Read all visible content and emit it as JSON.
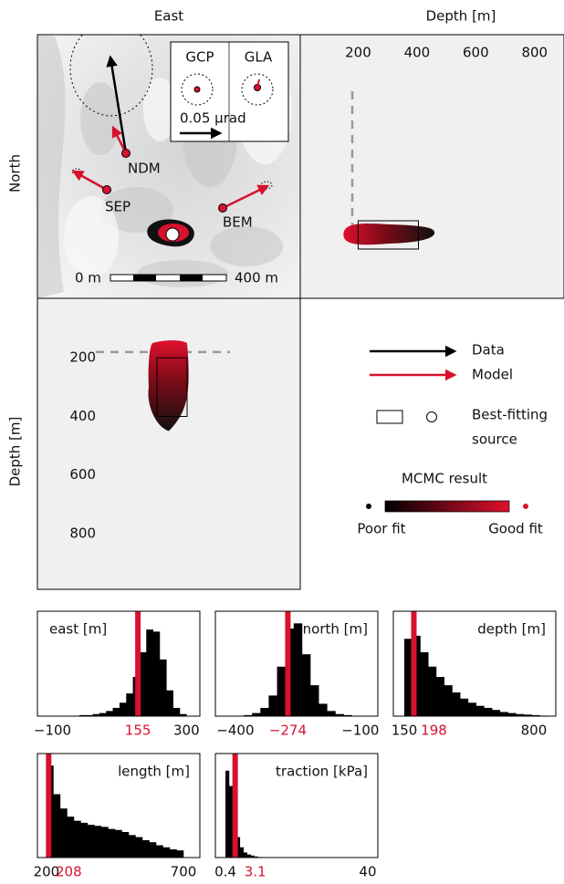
{
  "chart_data": [
    {
      "type": "map",
      "x_label": "East",
      "y_label": "North",
      "stations": [
        "NDM",
        "SEP",
        "BEM"
      ],
      "inset_stations": [
        "GCP",
        "GLA"
      ],
      "inset_scale": "0.05 μrad",
      "scale_labels": [
        "0 m",
        "400 m"
      ]
    },
    {
      "type": "scatter",
      "x_label": "Depth [m]",
      "xlim": [
        0,
        900
      ],
      "xticks": [
        200,
        400,
        600,
        800
      ],
      "dashed_line": 180,
      "cloud": [
        150,
        460
      ],
      "source": [
        200,
        405
      ]
    },
    {
      "type": "scatter",
      "y_label": "Depth [m]",
      "ylim": [
        0,
        990
      ],
      "yticks": [
        200,
        400,
        600,
        800
      ],
      "dashed_line": 180,
      "cloud": [
        150,
        450
      ],
      "source": [
        200,
        400
      ]
    },
    {
      "type": "histogram",
      "title": "east [m]",
      "color": "#000000",
      "best_color": "#d7112e",
      "xlim": [
        -145,
        340
      ],
      "xticks": [
        {
          "value": -100,
          "label": "−100"
        },
        300
      ],
      "best": 155,
      "bins": [
        -100,
        -80,
        -60,
        -40,
        -20,
        0,
        20,
        40,
        60,
        80,
        100,
        120,
        140,
        160,
        180,
        200,
        220,
        240,
        260,
        280,
        300
      ],
      "counts": [
        0,
        0,
        0,
        0,
        1,
        1,
        2,
        3,
        5,
        8,
        13,
        22,
        38,
        62,
        84,
        82,
        55,
        25,
        8,
        2
      ]
    },
    {
      "type": "histogram",
      "title": "north [m]",
      "color": "#000000",
      "best_color": "#d7112e",
      "xlim": [
        -448,
        -58
      ],
      "xticks": [
        {
          "value": -400,
          "label": "−400"
        },
        {
          "value": -100,
          "label": "−100"
        }
      ],
      "best": {
        "value": -274,
        "label": "−274"
      },
      "bins": [
        -400,
        -380,
        -360,
        -340,
        -320,
        -300,
        -280,
        -260,
        -240,
        -220,
        -200,
        -180,
        -160,
        -140,
        -120,
        -100
      ],
      "counts": [
        0,
        1,
        3,
        8,
        20,
        48,
        85,
        90,
        60,
        30,
        12,
        5,
        2,
        1,
        0
      ]
    },
    {
      "type": "histogram",
      "title": "depth [m]",
      "color": "#000000",
      "best_color": "#d7112e",
      "xlim": [
        95,
        910
      ],
      "xticks": [
        150,
        800
      ],
      "best": 198,
      "bins": [
        150,
        190,
        230,
        270,
        310,
        350,
        390,
        430,
        470,
        510,
        550,
        590,
        630,
        670,
        710,
        750,
        790,
        830,
        870
      ],
      "counts": [
        75,
        78,
        62,
        48,
        38,
        30,
        23,
        17,
        13,
        10,
        8,
        6,
        4,
        3,
        2,
        1.5,
        1,
        0.5
      ]
    },
    {
      "type": "histogram",
      "title": "length [m]",
      "color": "#000000",
      "best_color": "#d7112e",
      "xlim": [
        167,
        760
      ],
      "xticks": [
        200,
        700
      ],
      "best": 208,
      "bins": [
        200,
        225,
        250,
        275,
        300,
        325,
        350,
        375,
        400,
        425,
        450,
        475,
        500,
        525,
        550,
        575,
        600,
        625,
        650,
        675,
        700
      ],
      "counts": [
        90,
        62,
        48,
        40,
        36,
        34,
        32,
        31,
        30,
        28,
        27,
        25,
        22,
        20,
        17,
        15,
        12,
        10,
        8,
        7
      ]
    },
    {
      "type": "histogram",
      "title": "traction [kPa]",
      "color": "#000000",
      "best_color": "#d7112e",
      "xlim": [
        -2.4,
        42.8
      ],
      "xticks": [
        0.4,
        40
      ],
      "best": 3.1,
      "bins": [
        0.4,
        1.4,
        2.4,
        3.4,
        4.4,
        5.4,
        6.4,
        7.4,
        8.4,
        9.4,
        10.4
      ],
      "counts": [
        85,
        70,
        40,
        20,
        10,
        5,
        3,
        2,
        1,
        0.5
      ]
    }
  ],
  "legend": {
    "data": "Data",
    "model": "Model",
    "source": [
      "Best-fitting",
      "source"
    ],
    "mcmc": "MCMC result",
    "poor": "Poor fit",
    "good": "Good fit"
  }
}
